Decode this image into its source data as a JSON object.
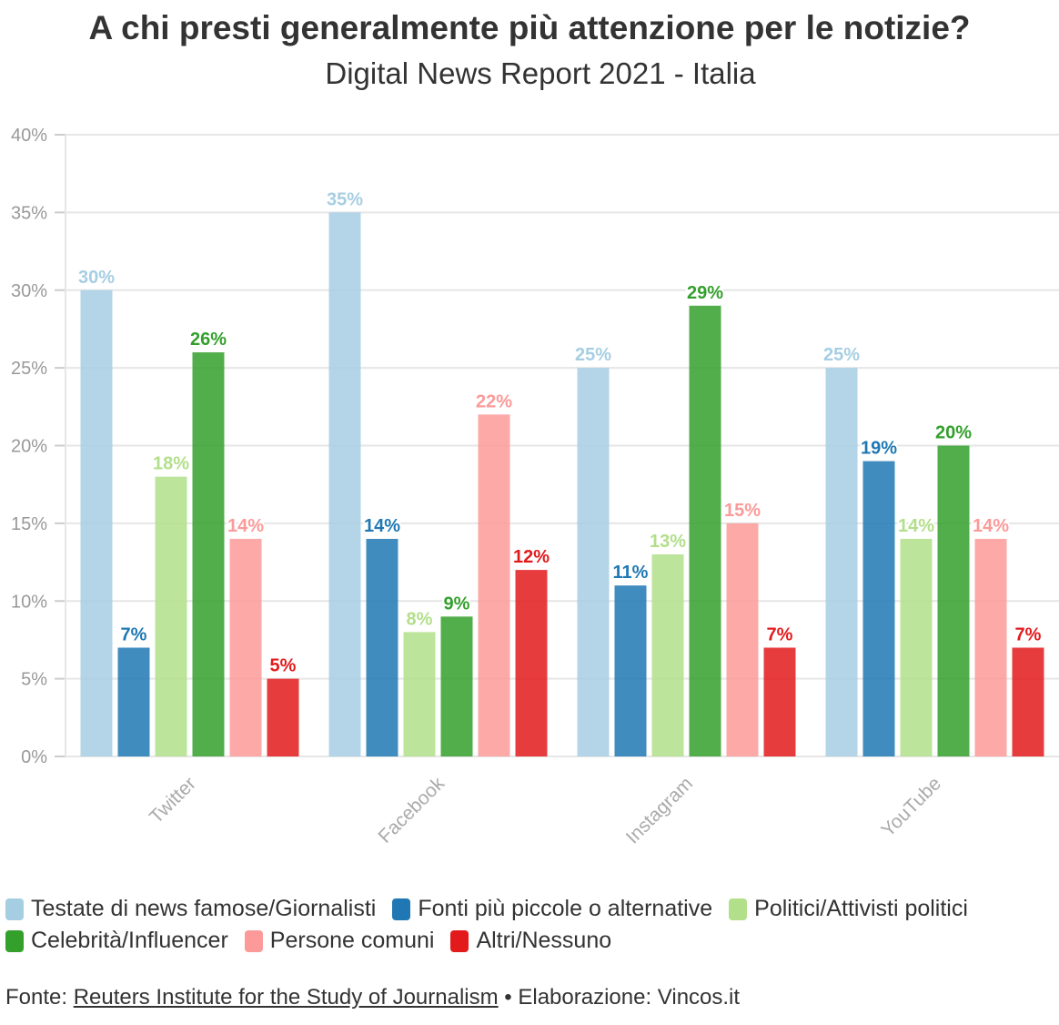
{
  "header": {
    "title": "A chi presti generalmente più attenzione per le notizie?",
    "subtitle": "Digital News Report 2021 - Italia"
  },
  "chart_data": {
    "type": "bar",
    "title": "A chi presti generalmente più attenzione per le notizie?",
    "subtitle": "Digital News Report 2021 - Italia",
    "categories": [
      "Twitter",
      "Facebook",
      "Instagram",
      "YouTube"
    ],
    "ylim": [
      0,
      40
    ],
    "yticks": [
      "0%",
      "5%",
      "10%",
      "15%",
      "20%",
      "25%",
      "30%",
      "35%",
      "40%"
    ],
    "grid": true,
    "legend_position": "bottom",
    "series": [
      {
        "name": "Testate di news famose/Giornalisti",
        "color": "#a6cee3",
        "values": [
          30,
          35,
          25,
          25
        ]
      },
      {
        "name": "Fonti più piccole o alternative",
        "color": "#1f78b4",
        "values": [
          7,
          14,
          11,
          19
        ]
      },
      {
        "name": "Politici/Attivisti politici",
        "color": "#b2df8a",
        "values": [
          18,
          8,
          13,
          14
        ]
      },
      {
        "name": "Celebrità/Influencer",
        "color": "#33a02c",
        "values": [
          26,
          9,
          29,
          20
        ]
      },
      {
        "name": "Persone comuni",
        "color": "#fb9a99",
        "values": [
          14,
          22,
          15,
          14
        ]
      },
      {
        "name": "Altri/Nessuno",
        "color": "#e31a1c",
        "values": [
          5,
          12,
          7,
          7
        ]
      }
    ]
  },
  "footer": {
    "prefix": "Fonte: ",
    "source_link": "Reuters Institute for the Study of Journalism",
    "suffix": " • Elaborazione: Vincos.it"
  }
}
